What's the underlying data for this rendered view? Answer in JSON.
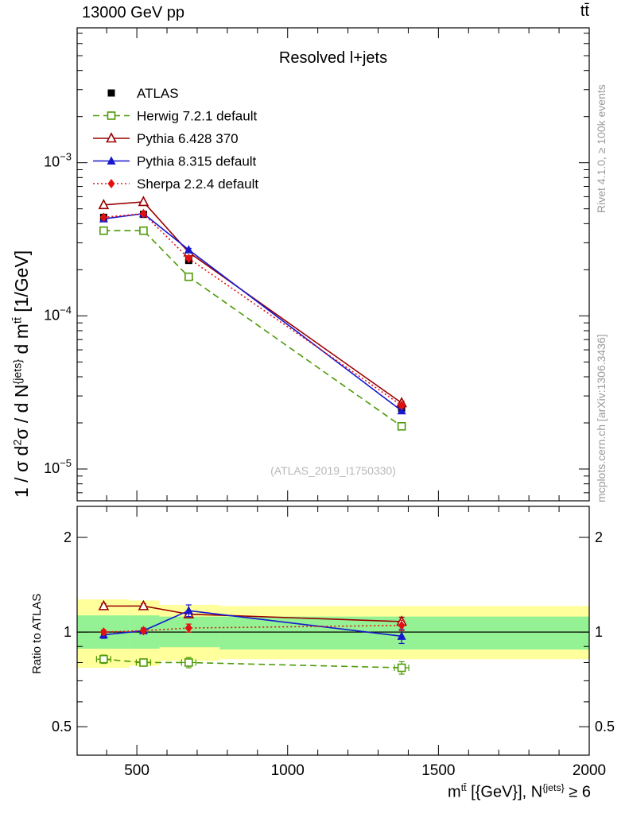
{
  "header": {
    "left": "13000 GeV pp",
    "right": "tt̄"
  },
  "panel_title": "Resolved l+jets",
  "watermark": "(ATLAS_2019_I1750330)",
  "side_notes": {
    "top_right": "Rivet 4.1.0, ≥ 100k events",
    "bottom_right": "mcplots.cern.ch [arXiv:1306.3436]"
  },
  "labels": {
    "ylabel_main": {
      "p1": "1 / σ d",
      "p2": "2",
      "p3": "σ / d N",
      "p4": "{jets}",
      "p5": " d m",
      "p6": "tt̄",
      "p7": " [1/GeV]"
    },
    "ylabel_ratio": "Ratio to ATLAS",
    "xlabel": {
      "p1": "m",
      "p2": "tt̄",
      "p3": " [{GeV}], N",
      "p4": "{jets}",
      "p5": " ≥ 6"
    }
  },
  "chart_data": {
    "type": "line",
    "title": "Resolved l+jets",
    "x_values_gev": [
      390,
      522,
      672,
      1378
    ],
    "x_axis": {
      "min": 302,
      "max": 2000,
      "ticks": [
        500,
        1000,
        1500,
        2000
      ],
      "minor_step": 100,
      "label": "m^{tt̄} [{GeV}], N^{jets} ≥ 6"
    },
    "y_axis_main": {
      "scale": "log",
      "min": 6.2e-06,
      "max": 0.0076,
      "tick_exponents": [
        -3,
        -4,
        -5
      ],
      "label": "1 / σ d²σ / d N^{jets} d m^{tt̄} [1/GeV]"
    },
    "y_axis_ratio": {
      "scale": "log",
      "min": 0.406,
      "max": 2.51,
      "ticks": [
        0.5,
        1,
        2
      ],
      "label": "Ratio to ATLAS"
    },
    "legend_position": "top-left",
    "series": [
      {
        "id": "atlas",
        "name": "ATLAS",
        "color": "#000000",
        "marker": "square-filled",
        "line": "none",
        "values": [
          0.00044,
          0.00046,
          0.00023,
          2.5e-05
        ],
        "yerr": [
          1.5e-05,
          1.5e-05,
          8e-06,
          1.2e-06
        ],
        "ratio": null
      },
      {
        "id": "herwig",
        "name": "Herwig 7.2.1 default",
        "color": "#4e9a06",
        "marker": "square-open",
        "line": "dashed",
        "values": [
          0.00036,
          0.00036,
          0.00018,
          1.9e-05
        ],
        "yerr": [
          8e-06,
          8e-06,
          5e-06,
          8e-07
        ],
        "ratio": [
          0.82,
          0.8,
          0.8,
          0.77
        ],
        "ratio_err": [
          0.025,
          0.02,
          0.03,
          0.035
        ],
        "xbar": true
      },
      {
        "id": "pythia6",
        "name": "Pythia 6.428 370",
        "color": "#990000",
        "marker": "triangle-open",
        "line": "solid",
        "values": [
          0.00053,
          0.000555,
          0.00026,
          2.7e-05
        ],
        "yerr": [
          8e-06,
          8e-06,
          5e-06,
          8e-07
        ],
        "ratio": [
          1.21,
          1.21,
          1.14,
          1.08
        ],
        "ratio_err": [
          0.02,
          0.02,
          0.03,
          0.035
        ]
      },
      {
        "id": "pythia8",
        "name": "Pythia 8.315 default",
        "color": "#1717cd",
        "marker": "triangle-filled",
        "line": "solid",
        "values": [
          0.00043,
          0.000465,
          0.00027,
          2.4e-05
        ],
        "yerr": [
          8e-06,
          8e-06,
          6e-06,
          9e-07
        ],
        "ratio": [
          0.98,
          1.01,
          1.17,
          0.97
        ],
        "ratio_err": [
          0.025,
          0.02,
          0.05,
          0.05
        ]
      },
      {
        "id": "sherpa",
        "name": "Sherpa 2.2.4 default",
        "color": "#e31010",
        "marker": "diamond-filled",
        "line": "dotted",
        "values": [
          0.00044,
          0.000465,
          0.000237,
          2.6e-05
        ],
        "yerr": [
          8e-06,
          8e-06,
          5e-06,
          9e-07
        ],
        "ratio": [
          1.0,
          1.01,
          1.03,
          1.05
        ],
        "ratio_err": [
          0.015,
          0.015,
          0.03,
          0.04
        ]
      }
    ],
    "ratio_bands": {
      "yellow": {
        "color": "#ffff9c",
        "edges": [
          302,
          475,
          575,
          775,
          2000
        ],
        "lo": [
          0.77,
          0.78,
          0.81,
          0.82
        ],
        "hi": [
          1.27,
          1.26,
          1.22,
          1.21
        ]
      },
      "green": {
        "color": "#94f294",
        "edges": [
          302,
          475,
          575,
          775,
          2000
        ],
        "lo": [
          0.885,
          0.885,
          0.895,
          0.88
        ],
        "hi": [
          1.13,
          1.13,
          1.12,
          1.12
        ]
      }
    },
    "ratio_reference_line": 1
  }
}
